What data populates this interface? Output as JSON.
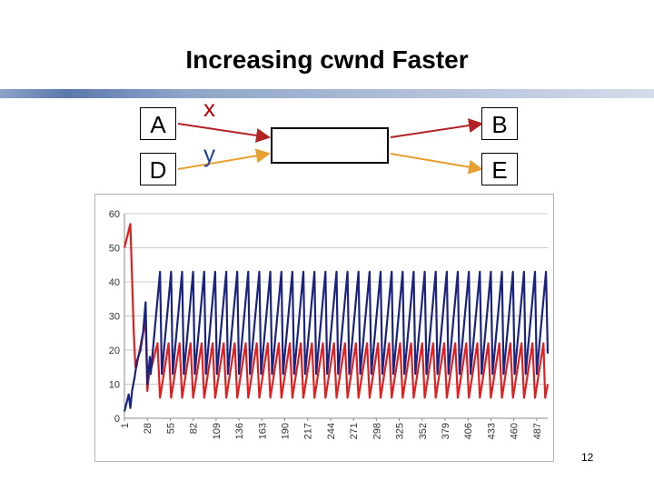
{
  "slide": {
    "title": "Increasing cwnd Faster",
    "page_number": "12"
  },
  "topology": {
    "hosts": {
      "a": "A",
      "d": "D",
      "b": "B",
      "e": "E"
    },
    "flows": {
      "x": "x",
      "y": "y"
    },
    "colors": {
      "x": "#b22222",
      "y": "#e8a030",
      "x_label": "#c00000",
      "y_label": "#1f3f9f"
    }
  },
  "chart_data": {
    "type": "line",
    "title": "",
    "xlabel": "",
    "ylabel": "",
    "ylim": [
      0,
      60
    ],
    "yticks": [
      0,
      10,
      20,
      30,
      40,
      50,
      60
    ],
    "xlim": [
      1,
      500
    ],
    "xticks": [
      1,
      28,
      55,
      82,
      109,
      136,
      163,
      190,
      217,
      244,
      271,
      298,
      325,
      352,
      379,
      406,
      433,
      460,
      487
    ],
    "grid": "horizontal",
    "legend": "none",
    "series": [
      {
        "name": "red",
        "color": "#e02020",
        "x": [
          1,
          8,
          12,
          14,
          15,
          19,
          22,
          26,
          28,
          30,
          31,
          40,
          43,
          53,
          56,
          66,
          69,
          79,
          82,
          92,
          95,
          105,
          108,
          118,
          121,
          131,
          134,
          144,
          147,
          157,
          160,
          170,
          173,
          183,
          186,
          196,
          199,
          209,
          212,
          222,
          225,
          235,
          238,
          248,
          251,
          261,
          264,
          274,
          277,
          287,
          290,
          300,
          303,
          313,
          316,
          326,
          329,
          339,
          342,
          352,
          355,
          365,
          368,
          378,
          381,
          391,
          394,
          404,
          407,
          417,
          420,
          430,
          433,
          443,
          446,
          456,
          459,
          469,
          472,
          482,
          485,
          495,
          497,
          500
        ],
        "y": [
          50,
          57,
          25,
          15,
          15,
          20,
          24,
          28,
          8,
          13,
          13,
          22,
          6,
          22,
          6,
          22,
          6,
          22,
          6,
          22,
          6,
          22,
          6,
          22,
          6,
          22,
          6,
          22,
          6,
          22,
          6,
          22,
          6,
          22,
          6,
          22,
          6,
          22,
          6,
          22,
          6,
          22,
          6,
          22,
          6,
          22,
          6,
          22,
          6,
          22,
          6,
          22,
          6,
          22,
          6,
          22,
          6,
          22,
          6,
          22,
          6,
          22,
          6,
          22,
          6,
          22,
          6,
          22,
          6,
          22,
          6,
          22,
          6,
          22,
          6,
          22,
          6,
          22,
          6,
          22,
          6,
          22,
          6,
          10
        ]
      },
      {
        "name": "blue",
        "color": "#1a237e",
        "x": [
          1,
          6,
          8,
          10,
          13,
          16,
          20,
          23,
          26,
          28,
          31,
          32,
          43,
          45,
          56,
          58,
          69,
          71,
          82,
          84,
          95,
          97,
          108,
          110,
          121,
          123,
          134,
          136,
          147,
          149,
          160,
          162,
          173,
          175,
          186,
          188,
          199,
          201,
          212,
          214,
          225,
          227,
          238,
          240,
          251,
          253,
          264,
          266,
          277,
          279,
          290,
          292,
          303,
          305,
          316,
          318,
          329,
          331,
          342,
          344,
          355,
          357,
          368,
          370,
          381,
          383,
          394,
          396,
          407,
          409,
          420,
          422,
          433,
          435,
          446,
          448,
          459,
          461,
          472,
          474,
          485,
          487,
          498,
          500
        ],
        "y": [
          2,
          7,
          3,
          8,
          12,
          17,
          20,
          25,
          34,
          10,
          18,
          13,
          43,
          13,
          43,
          13,
          43,
          13,
          43,
          13,
          43,
          13,
          43,
          13,
          43,
          13,
          43,
          13,
          43,
          13,
          43,
          13,
          43,
          13,
          43,
          13,
          43,
          13,
          43,
          13,
          43,
          13,
          43,
          13,
          43,
          13,
          43,
          13,
          43,
          13,
          43,
          13,
          43,
          13,
          43,
          13,
          43,
          13,
          43,
          13,
          43,
          13,
          43,
          13,
          43,
          13,
          43,
          13,
          43,
          13,
          43,
          13,
          43,
          13,
          43,
          13,
          43,
          13,
          43,
          13,
          43,
          13,
          43,
          19
        ]
      }
    ]
  }
}
